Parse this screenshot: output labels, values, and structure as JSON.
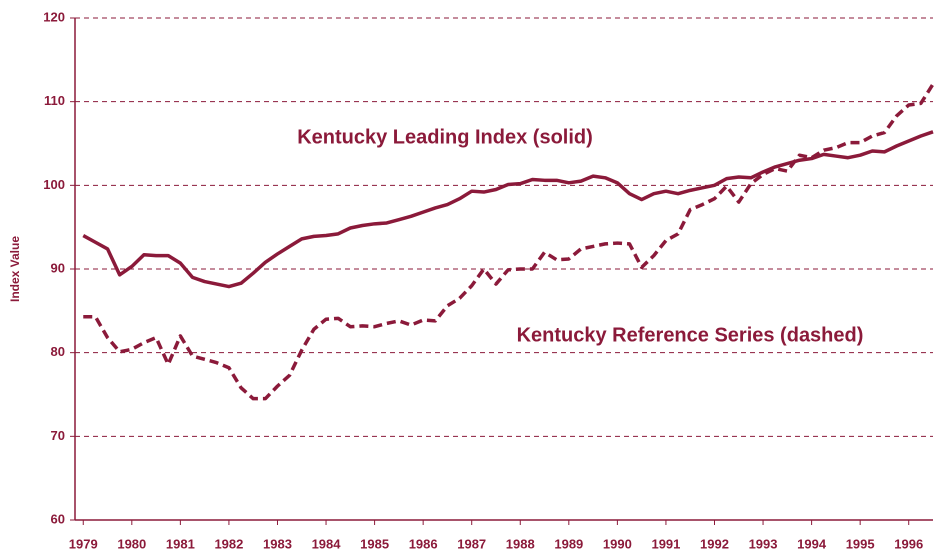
{
  "chart_data": {
    "type": "line",
    "y_label": "Index Value",
    "annotations": [
      "Kentucky Leading Index (solid)",
      "Kentucky Reference Series (dashed)"
    ],
    "x": [
      1979,
      1979.25,
      1979.5,
      1979.75,
      1980,
      1980.25,
      1980.5,
      1980.75,
      1981,
      1981.25,
      1981.5,
      1981.75,
      1982,
      1982.25,
      1982.5,
      1982.75,
      1983,
      1983.25,
      1983.5,
      1983.75,
      1984,
      1984.25,
      1984.5,
      1984.75,
      1985,
      1985.25,
      1985.5,
      1985.75,
      1986,
      1986.25,
      1986.5,
      1986.75,
      1987,
      1987.25,
      1987.5,
      1987.75,
      1988,
      1988.25,
      1988.5,
      1988.75,
      1989,
      1989.25,
      1989.5,
      1989.75,
      1990,
      1990.25,
      1990.5,
      1990.75,
      1991,
      1991.25,
      1991.5,
      1991.75,
      1992,
      1992.25,
      1992.5,
      1992.75,
      1993,
      1993.25,
      1993.5,
      1993.75,
      1994,
      1994.25,
      1994.5,
      1994.75,
      1995,
      1995.25,
      1995.5,
      1995.75,
      1996,
      1996.25,
      1996.5
    ],
    "series": [
      {
        "name": "Kentucky Leading Index",
        "color": "#8b1a3a",
        "line_style": "solid",
        "values": [
          94,
          93.2,
          92.4,
          89.3,
          90.3,
          91.7,
          91.6,
          91.6,
          90.7,
          89,
          88.5,
          88.2,
          87.9,
          88.3,
          89.5,
          90.8,
          91.8,
          92.7,
          93.6,
          93.9,
          94,
          94.2,
          94.9,
          95.2,
          95.4,
          95.5,
          95.9,
          96.3,
          96.8,
          97.3,
          97.7,
          98.4,
          99.3,
          99.2,
          99.5,
          100.1,
          100.2,
          100.7,
          100.6,
          100.6,
          100.3,
          100.5,
          101.1,
          100.9,
          100.3,
          99,
          98.3,
          99,
          99.3,
          99,
          99.4,
          99.7,
          100,
          100.8,
          101,
          100.9,
          101.6,
          102.2,
          102.6,
          103,
          103.2,
          103.7,
          103.5,
          103.3,
          103.6,
          104.1,
          104,
          104.7,
          105.3,
          105.9,
          106.4
        ]
      },
      {
        "name": "Kentucky Reference Series",
        "color": "#8b1a3a",
        "line_style": "dashed",
        "values": [
          84.3,
          84.3,
          81.8,
          80.1,
          80.4,
          81.2,
          81.8,
          78.6,
          82,
          79.6,
          79.2,
          78.8,
          78.2,
          75.8,
          74.5,
          74.5,
          76,
          77.3,
          80.3,
          82.8,
          84,
          84.1,
          83.1,
          83.2,
          83.1,
          83.5,
          83.8,
          83.3,
          83.9,
          83.8,
          85.6,
          86.5,
          88,
          90,
          88.2,
          89.9,
          90,
          90,
          92,
          91.1,
          91.2,
          92.4,
          92.7,
          93,
          93.1,
          93,
          90.2,
          91.6,
          93.4,
          94.2,
          97.1,
          97.7,
          98.4,
          99.9,
          98,
          100.2,
          101.3,
          102,
          101.7,
          103.6,
          103.3,
          104.2,
          104.5,
          105.1,
          105.1,
          105.9,
          106.3,
          108.3,
          109.6,
          109.8,
          112.1
        ]
      }
    ],
    "xlim": [
      1978.83,
      1996.5
    ],
    "xticks": [
      1979,
      1980,
      1981,
      1982,
      1983,
      1984,
      1985,
      1986,
      1987,
      1988,
      1989,
      1990,
      1991,
      1992,
      1993,
      1994,
      1995,
      1996
    ],
    "ylim": [
      60,
      120
    ],
    "yticks": [
      60,
      70,
      80,
      90,
      100,
      110,
      120
    ],
    "grid": true,
    "axis_color": "#8b1a3a"
  }
}
